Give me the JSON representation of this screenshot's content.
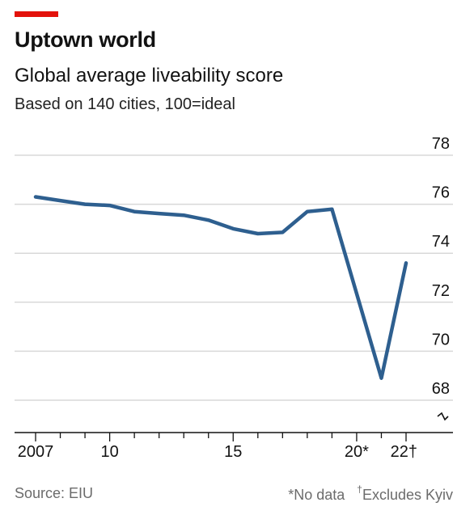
{
  "header": {
    "title": "Uptown world",
    "subtitle": "Global average liveability score",
    "description": "Based on 140 cities, 100=ideal"
  },
  "footer": {
    "source": "Source: EIU",
    "note_star": "*No data",
    "note_dagger_mark": "†",
    "note_dagger_text": "Excludes Kyiv"
  },
  "colors": {
    "accent": "#e3120b",
    "line": "#2e5f8f",
    "grid": "#d8d8d8",
    "axis": "#121212"
  },
  "chart_data": {
    "type": "line",
    "title": "Uptown world",
    "subtitle": "Global average liveability score",
    "xlabel": "",
    "ylabel": "",
    "xlim": [
      2007,
      2022
    ],
    "ylim": [
      68,
      78
    ],
    "y_axis_position": "right",
    "y_axis_break": true,
    "grid": true,
    "y_ticks": [
      68,
      70,
      72,
      74,
      76,
      78
    ],
    "x_tick_labels": [
      {
        "x": 2007,
        "label": "2007"
      },
      {
        "x": 2010,
        "label": "10"
      },
      {
        "x": 2015,
        "label": "15"
      },
      {
        "x": 2020,
        "label": "20*"
      },
      {
        "x": 2022,
        "label": "22†"
      }
    ],
    "series": [
      {
        "x": [
          2007,
          2008,
          2009,
          2010,
          2011,
          2012,
          2013,
          2014,
          2015,
          2016,
          2017,
          2018,
          2019,
          2021,
          2022
        ],
        "y": [
          76.3,
          76.15,
          76.0,
          75.95,
          75.7,
          75.62,
          75.55,
          75.35,
          75.0,
          74.8,
          74.85,
          75.7,
          75.8,
          68.9,
          73.6
        ]
      }
    ]
  }
}
